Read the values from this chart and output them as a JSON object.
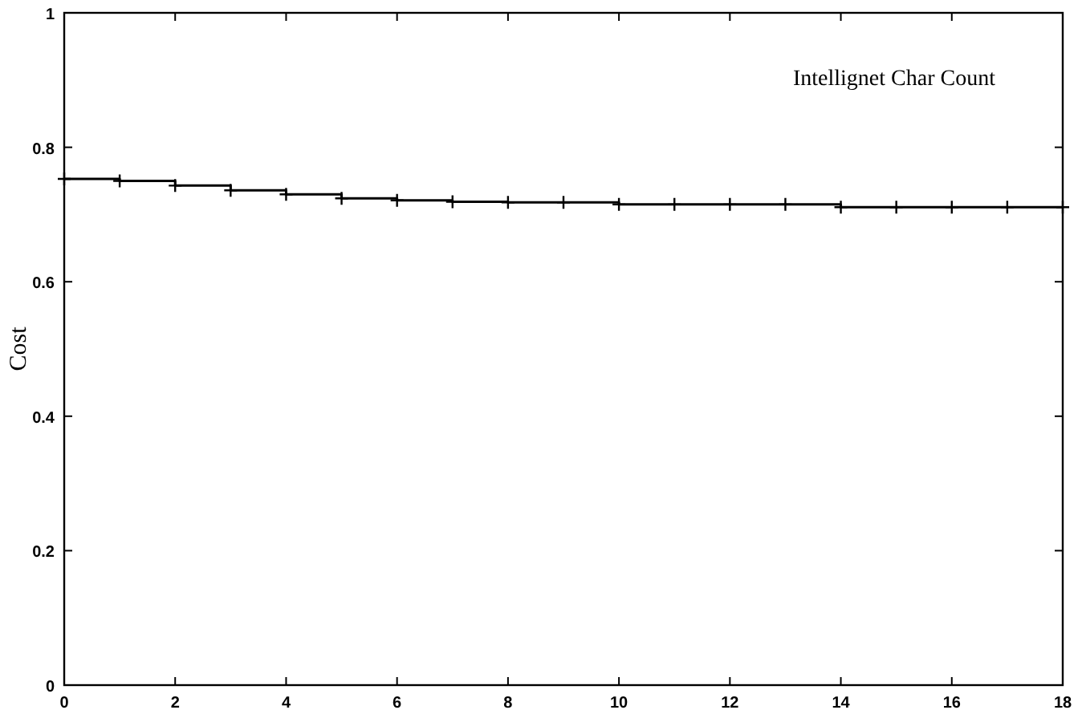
{
  "chart_data": {
    "type": "step",
    "ylabel": "Cost",
    "annotations": [
      "Intellignet Char Count"
    ],
    "x": [
      0,
      1,
      2,
      3,
      4,
      5,
      6,
      7,
      8,
      9,
      10,
      11,
      12,
      13,
      14,
      15,
      16,
      17,
      18
    ],
    "series": [
      {
        "color": "#000000",
        "values": [
          0.753,
          0.75,
          0.743,
          0.736,
          0.73,
          0.724,
          0.721,
          0.719,
          0.718,
          0.718,
          0.715,
          0.715,
          0.715,
          0.715,
          0.711,
          0.711,
          0.711,
          0.711,
          0.711
        ]
      }
    ],
    "xlim": [
      0,
      18
    ],
    "xticks": [
      0,
      2,
      4,
      6,
      8,
      10,
      12,
      14,
      16,
      18
    ],
    "ylim": [
      0,
      1
    ],
    "yticks": [
      0,
      0.2,
      0.4,
      0.6,
      0.8,
      1
    ],
    "marker": "cross"
  }
}
